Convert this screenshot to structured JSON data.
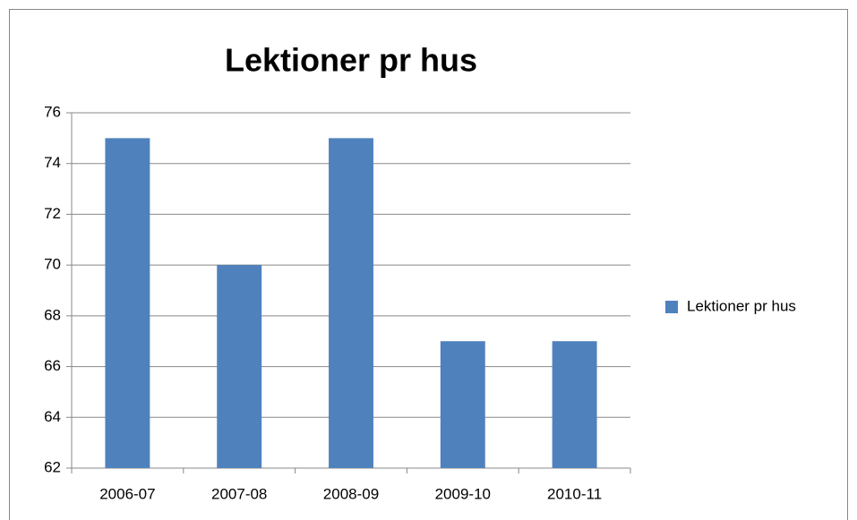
{
  "chart_data": {
    "type": "bar",
    "title": "Lektioner pr hus",
    "categories": [
      "2006-07",
      "2007-08",
      "2008-09",
      "2009-10",
      "2010-11"
    ],
    "series": [
      {
        "name": "Lektioner pr hus",
        "color": "#4f81bd",
        "values": [
          75,
          70,
          75,
          67,
          67
        ]
      }
    ],
    "ylim": [
      62,
      76
    ],
    "yticks": [
      62,
      64,
      66,
      68,
      70,
      72,
      74,
      76
    ],
    "grid": true,
    "legend": "right"
  }
}
